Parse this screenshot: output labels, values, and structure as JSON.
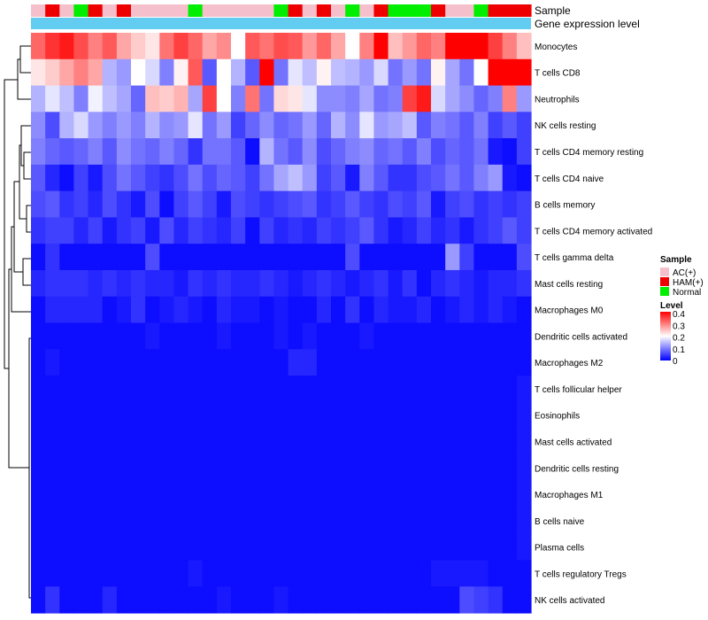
{
  "chart_data": {
    "type": "heatmap",
    "annotation_rows": {
      "sample_label": "Sample",
      "expression_label": "Gene expression level"
    },
    "sample_groups": [
      "AC(+)",
      "HAM(+)",
      "Normal"
    ],
    "sample_colors": {
      "AC(+)": "#f5c0cb",
      "HAM(+)": "#ee0000",
      "Normal": "#00ee00"
    },
    "expression_bar_color": "#62cdf0",
    "columns": [
      "AC(+)",
      "HAM(+)",
      "AC(+)",
      "Normal",
      "HAM(+)",
      "AC(+)",
      "HAM(+)",
      "AC(+)",
      "AC(+)",
      "AC(+)",
      "AC(+)",
      "Normal",
      "AC(+)",
      "AC(+)",
      "AC(+)",
      "AC(+)",
      "AC(+)",
      "Normal",
      "HAM(+)",
      "AC(+)",
      "HAM(+)",
      "AC(+)",
      "Normal",
      "AC(+)",
      "HAM(+)",
      "Normal",
      "Normal",
      "Normal",
      "HAM(+)",
      "AC(+)",
      "AC(+)",
      "Normal",
      "HAM(+)",
      "HAM(+)",
      "HAM(+)"
    ],
    "rows": [
      "Monocytes",
      "T cells CD8",
      "Neutrophils",
      "NK cells resting",
      "T cells CD4 memory resting",
      "T cells CD4 naive",
      "B cells memory",
      "T cells CD4 memory activated",
      "T cells gamma delta",
      "Mast cells resting",
      "Macrophages M0",
      "Dendritic cells activated",
      "Macrophages M2",
      "T cells follicular helper",
      "Eosinophils",
      "Mast cells activated",
      "Dendritic cells resting",
      "Macrophages M1",
      "B cells naive",
      "Plasma cells",
      "T cells regulatory  Tregs",
      "NK cells activated"
    ],
    "values": [
      [
        0.32,
        0.36,
        0.38,
        0.34,
        0.3,
        0.33,
        0.27,
        0.24,
        0.22,
        0.31,
        0.35,
        0.32,
        0.27,
        0.29,
        0.2,
        0.33,
        0.31,
        0.34,
        0.33,
        0.28,
        0.32,
        0.27,
        0.2,
        0.3,
        0.4,
        0.25,
        0.28,
        0.32,
        0.3,
        0.4,
        0.4,
        0.4,
        0.35,
        0.3,
        0.25
      ],
      [
        0.22,
        0.24,
        0.27,
        0.3,
        0.27,
        0.14,
        0.12,
        0.2,
        0.17,
        0.1,
        0.21,
        0.33,
        0.07,
        0.2,
        0.14,
        0.07,
        0.4,
        0.09,
        0.18,
        0.15,
        0.21,
        0.15,
        0.14,
        0.12,
        0.17,
        0.09,
        0.12,
        0.09,
        0.21,
        0.13,
        0.09,
        0.2,
        0.4,
        0.4,
        0.4
      ],
      [
        0.14,
        0.18,
        0.15,
        0.1,
        0.19,
        0.15,
        0.13,
        0.08,
        0.25,
        0.24,
        0.26,
        0.13,
        0.35,
        0.2,
        0.1,
        0.31,
        0.09,
        0.23,
        0.22,
        0.18,
        0.11,
        0.11,
        0.1,
        0.13,
        0.09,
        0.1,
        0.35,
        0.38,
        0.17,
        0.13,
        0.11,
        0.08,
        0.1,
        0.3,
        0.12
      ],
      [
        0.11,
        0.06,
        0.14,
        0.17,
        0.12,
        0.1,
        0.12,
        0.1,
        0.14,
        0.11,
        0.12,
        0.18,
        0.09,
        0.12,
        0.05,
        0.08,
        0.11,
        0.08,
        0.09,
        0.12,
        0.08,
        0.14,
        0.11,
        0.18,
        0.12,
        0.13,
        0.15,
        0.07,
        0.1,
        0.09,
        0.07,
        0.1,
        0.05,
        0.07,
        0.05
      ],
      [
        0.1,
        0.08,
        0.07,
        0.08,
        0.1,
        0.07,
        0.11,
        0.09,
        0.08,
        0.1,
        0.08,
        0.04,
        0.09,
        0.09,
        0.07,
        0.01,
        0.14,
        0.09,
        0.07,
        0.11,
        0.06,
        0.08,
        0.1,
        0.11,
        0.08,
        0.09,
        0.07,
        0.1,
        0.06,
        0.08,
        0.07,
        0.09,
        0.02,
        0.01,
        0.05
      ],
      [
        0.07,
        0.03,
        0.01,
        0.05,
        0.02,
        0.06,
        0.09,
        0.07,
        0.05,
        0.04,
        0.06,
        0.09,
        0.06,
        0.08,
        0.07,
        0.05,
        0.09,
        0.13,
        0.15,
        0.12,
        0.05,
        0.07,
        0.02,
        0.1,
        0.07,
        0.04,
        0.04,
        0.06,
        0.07,
        0.09,
        0.07,
        0.1,
        0.12,
        0.02,
        0.01
      ],
      [
        0.06,
        0.07,
        0.04,
        0.05,
        0.03,
        0.06,
        0.04,
        0.02,
        0.06,
        0.01,
        0.05,
        0.07,
        0.05,
        0.02,
        0.06,
        0.05,
        0.04,
        0.05,
        0.06,
        0.07,
        0.04,
        0.05,
        0.07,
        0.05,
        0.04,
        0.06,
        0.05,
        0.07,
        0.02,
        0.05,
        0.06,
        0.04,
        0.05,
        0.04,
        0.05
      ],
      [
        0.04,
        0.05,
        0.05,
        0.03,
        0.05,
        0.02,
        0.04,
        0.05,
        0.02,
        0.06,
        0.03,
        0.05,
        0.04,
        0.03,
        0.05,
        0.01,
        0.05,
        0.03,
        0.04,
        0.03,
        0.05,
        0.04,
        0.05,
        0.07,
        0.04,
        0.02,
        0.03,
        0.05,
        0.03,
        0.04,
        0.02,
        0.04,
        0.05,
        0.07,
        0.05
      ],
      [
        0.01,
        0.04,
        0.01,
        0.01,
        0.01,
        0.01,
        0.01,
        0.01,
        0.06,
        0.01,
        0.01,
        0.01,
        0.01,
        0.01,
        0.01,
        0.01,
        0.01,
        0.01,
        0.01,
        0.01,
        0.01,
        0.01,
        0.06,
        0.01,
        0.01,
        0.01,
        0.01,
        0.01,
        0.01,
        0.12,
        0.05,
        0.01,
        0.01,
        0.01,
        0.06
      ],
      [
        0.03,
        0.04,
        0.04,
        0.04,
        0.03,
        0.04,
        0.03,
        0.04,
        0.03,
        0.03,
        0.02,
        0.04,
        0.03,
        0.04,
        0.03,
        0.03,
        0.04,
        0.03,
        0.02,
        0.03,
        0.04,
        0.03,
        0.02,
        0.03,
        0.04,
        0.02,
        0.04,
        0.01,
        0.03,
        0.04,
        0.03,
        0.02,
        0.03,
        0.03,
        0.04
      ],
      [
        0.01,
        0.03,
        0.03,
        0.03,
        0.03,
        0.01,
        0.02,
        0.04,
        0.01,
        0.02,
        0.03,
        0.02,
        0.01,
        0.03,
        0.02,
        0.02,
        0.01,
        0.02,
        0.01,
        0.01,
        0.03,
        0.01,
        0.04,
        0.01,
        0.03,
        0.02,
        0.02,
        0.03,
        0.01,
        0.02,
        0.03,
        0.02,
        0.03,
        0.02,
        0.01
      ],
      [
        0.01,
        0.01,
        0.01,
        0.01,
        0.01,
        0.01,
        0.01,
        0.01,
        0.02,
        0.01,
        0.01,
        0.01,
        0.01,
        0.02,
        0.01,
        0.01,
        0.01,
        0.02,
        0.01,
        0.02,
        0.01,
        0.01,
        0.01,
        0.02,
        0.01,
        0.01,
        0.01,
        0.01,
        0.01,
        0.01,
        0.01,
        0.01,
        0.01,
        0.01,
        0.01
      ],
      [
        0.01,
        0.02,
        0.01,
        0.01,
        0.01,
        0.01,
        0.01,
        0.01,
        0.01,
        0.01,
        0.01,
        0.01,
        0.01,
        0.01,
        0.01,
        0.01,
        0.01,
        0.01,
        0.03,
        0.03,
        0.01,
        0.01,
        0.01,
        0.01,
        0.01,
        0.01,
        0.01,
        0.01,
        0.01,
        0.01,
        0.01,
        0.01,
        0.01,
        0.01,
        0.01
      ],
      [
        0.01,
        0.01,
        0.01,
        0.01,
        0.01,
        0.01,
        0.01,
        0.01,
        0.01,
        0.01,
        0.01,
        0.01,
        0.01,
        0.01,
        0.01,
        0.01,
        0.01,
        0.01,
        0.01,
        0.01,
        0.01,
        0.01,
        0.01,
        0.01,
        0.01,
        0.01,
        0.01,
        0.01,
        0.01,
        0.01,
        0.01,
        0.01,
        0.01,
        0.01,
        0.02
      ],
      [
        0.01,
        0.01,
        0.01,
        0.01,
        0.01,
        0.01,
        0.01,
        0.01,
        0.01,
        0.01,
        0.01,
        0.01,
        0.01,
        0.01,
        0.01,
        0.01,
        0.01,
        0.01,
        0.01,
        0.01,
        0.01,
        0.01,
        0.01,
        0.01,
        0.01,
        0.01,
        0.01,
        0.01,
        0.01,
        0.01,
        0.01,
        0.01,
        0.01,
        0.01,
        0.02
      ],
      [
        0.01,
        0.01,
        0.01,
        0.01,
        0.01,
        0.01,
        0.01,
        0.01,
        0.01,
        0.01,
        0.01,
        0.01,
        0.01,
        0.01,
        0.01,
        0.01,
        0.01,
        0.01,
        0.01,
        0.01,
        0.01,
        0.01,
        0.01,
        0.01,
        0.01,
        0.01,
        0.01,
        0.01,
        0.01,
        0.01,
        0.01,
        0.01,
        0.01,
        0.01,
        0.02
      ],
      [
        0.01,
        0.01,
        0.01,
        0.01,
        0.01,
        0.01,
        0.01,
        0.01,
        0.01,
        0.01,
        0.01,
        0.01,
        0.01,
        0.01,
        0.01,
        0.01,
        0.01,
        0.01,
        0.01,
        0.01,
        0.01,
        0.01,
        0.01,
        0.01,
        0.01,
        0.01,
        0.01,
        0.01,
        0.01,
        0.01,
        0.01,
        0.01,
        0.01,
        0.01,
        0.02
      ],
      [
        0.01,
        0.01,
        0.01,
        0.01,
        0.01,
        0.01,
        0.01,
        0.01,
        0.01,
        0.01,
        0.01,
        0.01,
        0.01,
        0.01,
        0.01,
        0.01,
        0.01,
        0.01,
        0.01,
        0.01,
        0.01,
        0.01,
        0.01,
        0.01,
        0.01,
        0.01,
        0.01,
        0.01,
        0.01,
        0.01,
        0.01,
        0.01,
        0.01,
        0.01,
        0.02
      ],
      [
        0.01,
        0.01,
        0.01,
        0.01,
        0.01,
        0.01,
        0.01,
        0.01,
        0.01,
        0.01,
        0.01,
        0.01,
        0.01,
        0.01,
        0.01,
        0.01,
        0.01,
        0.01,
        0.01,
        0.01,
        0.01,
        0.01,
        0.01,
        0.01,
        0.01,
        0.01,
        0.01,
        0.01,
        0.01,
        0.01,
        0.01,
        0.01,
        0.01,
        0.01,
        0.02
      ],
      [
        0.01,
        0.01,
        0.01,
        0.01,
        0.01,
        0.01,
        0.01,
        0.01,
        0.01,
        0.01,
        0.01,
        0.01,
        0.01,
        0.01,
        0.01,
        0.01,
        0.01,
        0.01,
        0.01,
        0.01,
        0.01,
        0.01,
        0.01,
        0.01,
        0.01,
        0.01,
        0.01,
        0.01,
        0.01,
        0.01,
        0.01,
        0.01,
        0.01,
        0.01,
        0.02
      ],
      [
        0.01,
        0.01,
        0.01,
        0.01,
        0.01,
        0.01,
        0.01,
        0.01,
        0.01,
        0.01,
        0.01,
        0.02,
        0.01,
        0.01,
        0.01,
        0.01,
        0.01,
        0.01,
        0.01,
        0.01,
        0.01,
        0.01,
        0.01,
        0.01,
        0.01,
        0.01,
        0.01,
        0.01,
        0.02,
        0.02,
        0.02,
        0.02,
        0.01,
        0.01,
        0.01
      ],
      [
        0.01,
        0.04,
        0.01,
        0.01,
        0.01,
        0.03,
        0.01,
        0.01,
        0.01,
        0.01,
        0.01,
        0.01,
        0.01,
        0.02,
        0.01,
        0.01,
        0.01,
        0.02,
        0.01,
        0.01,
        0.01,
        0.01,
        0.01,
        0.01,
        0.01,
        0.01,
        0.01,
        0.01,
        0.01,
        0.01,
        0.06,
        0.05,
        0.04,
        0.01,
        0.01
      ]
    ],
    "scale": {
      "min": 0,
      "max": 0.4,
      "colors": [
        "#0000ff",
        "#ffffff",
        "#ff0000"
      ]
    },
    "legend": {
      "sample_title": "Sample",
      "level_title": "Level",
      "ticks": [
        0.4,
        0.3,
        0.2,
        0.1,
        0
      ],
      "tick_labels": [
        "0.4",
        "0.3",
        "0.2",
        "0.1",
        "0"
      ],
      "placement": "right"
    },
    "row_dendrogram": "left",
    "legend_entries": [
      "AC(+)",
      "HAM(+)",
      "Normal"
    ]
  }
}
